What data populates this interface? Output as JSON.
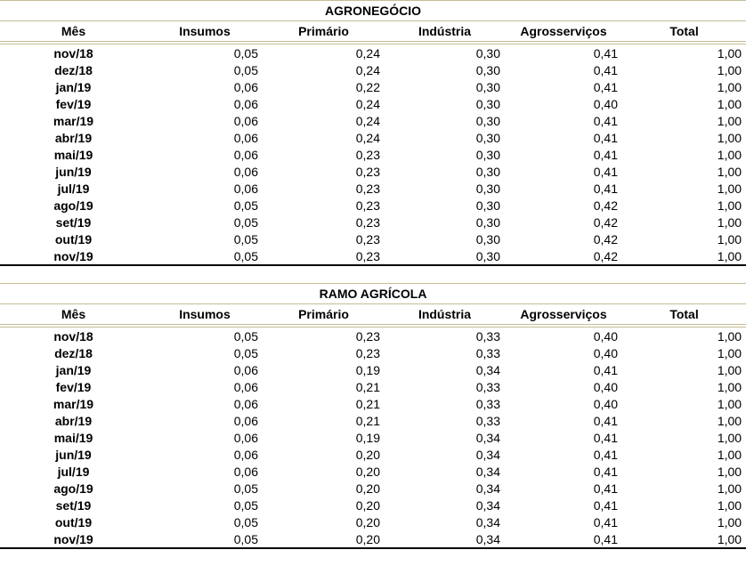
{
  "colors": {
    "border_tan": "#c4bd97",
    "border_black": "#000000",
    "background": "#ffffff",
    "text": "#000000"
  },
  "chart_data": [
    {
      "type": "table",
      "title": "AGRONEGÓCIO",
      "columns": [
        "Mês",
        "Insumos",
        "Primário",
        "Indústria",
        "Agrosserviços",
        "Total"
      ],
      "rows": [
        [
          "nov/18",
          "0,05",
          "0,24",
          "0,30",
          "0,41",
          "1,00"
        ],
        [
          "dez/18",
          "0,05",
          "0,24",
          "0,30",
          "0,41",
          "1,00"
        ],
        [
          "jan/19",
          "0,06",
          "0,22",
          "0,30",
          "0,41",
          "1,00"
        ],
        [
          "fev/19",
          "0,06",
          "0,24",
          "0,30",
          "0,40",
          "1,00"
        ],
        [
          "mar/19",
          "0,06",
          "0,24",
          "0,30",
          "0,41",
          "1,00"
        ],
        [
          "abr/19",
          "0,06",
          "0,24",
          "0,30",
          "0,41",
          "1,00"
        ],
        [
          "mai/19",
          "0,06",
          "0,23",
          "0,30",
          "0,41",
          "1,00"
        ],
        [
          "jun/19",
          "0,06",
          "0,23",
          "0,30",
          "0,41",
          "1,00"
        ],
        [
          "jul/19",
          "0,06",
          "0,23",
          "0,30",
          "0,41",
          "1,00"
        ],
        [
          "ago/19",
          "0,05",
          "0,23",
          "0,30",
          "0,42",
          "1,00"
        ],
        [
          "set/19",
          "0,05",
          "0,23",
          "0,30",
          "0,42",
          "1,00"
        ],
        [
          "out/19",
          "0,05",
          "0,23",
          "0,30",
          "0,42",
          "1,00"
        ],
        [
          "nov/19",
          "0,05",
          "0,23",
          "0,30",
          "0,42",
          "1,00"
        ]
      ]
    },
    {
      "type": "table",
      "title": "RAMO AGRÍCOLA",
      "columns": [
        "Mês",
        "Insumos",
        "Primário",
        "Indústria",
        "Agrosserviços",
        "Total"
      ],
      "rows": [
        [
          "nov/18",
          "0,05",
          "0,23",
          "0,33",
          "0,40",
          "1,00"
        ],
        [
          "dez/18",
          "0,05",
          "0,23",
          "0,33",
          "0,40",
          "1,00"
        ],
        [
          "jan/19",
          "0,06",
          "0,19",
          "0,34",
          "0,41",
          "1,00"
        ],
        [
          "fev/19",
          "0,06",
          "0,21",
          "0,33",
          "0,40",
          "1,00"
        ],
        [
          "mar/19",
          "0,06",
          "0,21",
          "0,33",
          "0,40",
          "1,00"
        ],
        [
          "abr/19",
          "0,06",
          "0,21",
          "0,33",
          "0,41",
          "1,00"
        ],
        [
          "mai/19",
          "0,06",
          "0,19",
          "0,34",
          "0,41",
          "1,00"
        ],
        [
          "jun/19",
          "0,06",
          "0,20",
          "0,34",
          "0,41",
          "1,00"
        ],
        [
          "jul/19",
          "0,06",
          "0,20",
          "0,34",
          "0,41",
          "1,00"
        ],
        [
          "ago/19",
          "0,05",
          "0,20",
          "0,34",
          "0,41",
          "1,00"
        ],
        [
          "set/19",
          "0,05",
          "0,20",
          "0,34",
          "0,41",
          "1,00"
        ],
        [
          "out/19",
          "0,05",
          "0,20",
          "0,34",
          "0,41",
          "1,00"
        ],
        [
          "nov/19",
          "0,05",
          "0,20",
          "0,34",
          "0,41",
          "1,00"
        ]
      ]
    }
  ]
}
